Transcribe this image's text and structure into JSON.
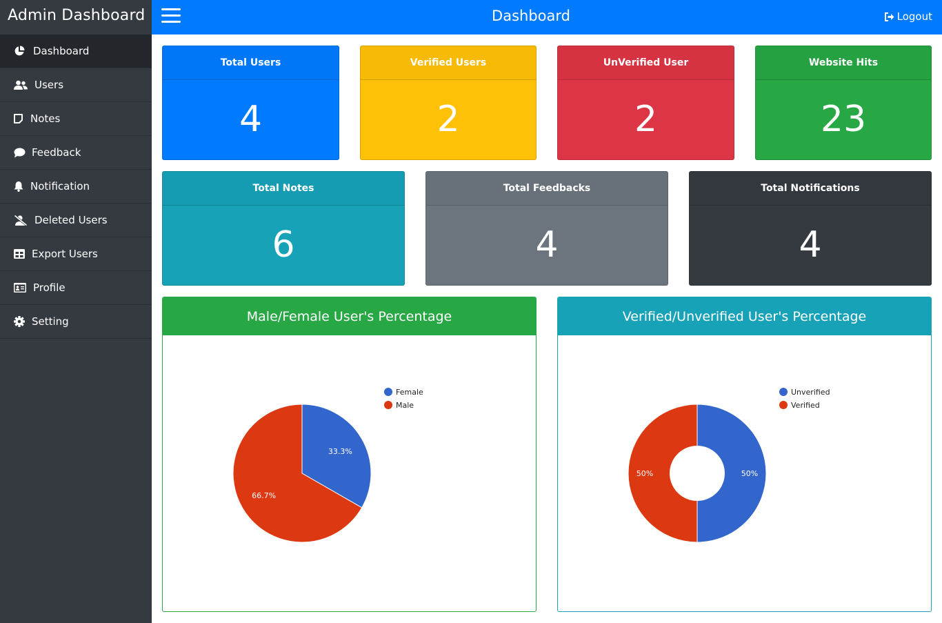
{
  "sidebar": {
    "brand": "Admin Dashboard",
    "items": [
      {
        "label": "Dashboard",
        "icon": "pie-chart-icon",
        "active": true
      },
      {
        "label": "Users",
        "icon": "users-icon"
      },
      {
        "label": "Notes",
        "icon": "note-icon"
      },
      {
        "label": "Feedback",
        "icon": "comment-icon"
      },
      {
        "label": "Notification",
        "icon": "bell-icon"
      },
      {
        "label": "Deleted Users",
        "icon": "user-slash-icon"
      },
      {
        "label": "Export Users",
        "icon": "table-icon"
      },
      {
        "label": "Profile",
        "icon": "id-card-icon"
      },
      {
        "label": "Setting",
        "icon": "gear-icon"
      }
    ]
  },
  "topbar": {
    "title": "Dashboard",
    "logout_label": "Logout",
    "color": "#007bff"
  },
  "stats": {
    "total_users": {
      "label": "Total Users",
      "value": "4",
      "color": "#007bff"
    },
    "verified_users": {
      "label": "Verified Users",
      "value": "2",
      "color": "#ffc107"
    },
    "unverified_user": {
      "label": "UnVerified User",
      "value": "2",
      "color": "#dc3545"
    },
    "website_hits": {
      "label": "Website Hits",
      "value": "23",
      "color": "#28a745"
    },
    "total_notes": {
      "label": "Total Notes",
      "value": "6",
      "color": "#17a2b8"
    },
    "total_feedbacks": {
      "label": "Total Feedbacks",
      "value": "4",
      "color": "#6c757d"
    },
    "total_notifications": {
      "label": "Total Notifications",
      "value": "4",
      "color": "#343a40"
    }
  },
  "charts": {
    "gender": {
      "title": "Male/Female User's Percentage",
      "header_color": "#28a745"
    },
    "verification": {
      "title": "Verified/Unverified User's Percentage",
      "header_color": "#17a2b8"
    }
  },
  "chart_data": [
    {
      "type": "pie",
      "title": "Male/Female User's Percentage",
      "categories": [
        "Female",
        "Male"
      ],
      "values": [
        33.3,
        66.7
      ],
      "labels": [
        "33.3%",
        "66.7%"
      ],
      "colors": [
        "#3366cc",
        "#dc3912"
      ],
      "legend": "right"
    },
    {
      "type": "pie",
      "donut": true,
      "title": "Verified/Unverified User's Percentage",
      "categories": [
        "Unverified",
        "Verified"
      ],
      "values": [
        50,
        50
      ],
      "labels": [
        "50%",
        "50%"
      ],
      "colors": [
        "#3366cc",
        "#dc3912"
      ],
      "legend": "right"
    }
  ]
}
